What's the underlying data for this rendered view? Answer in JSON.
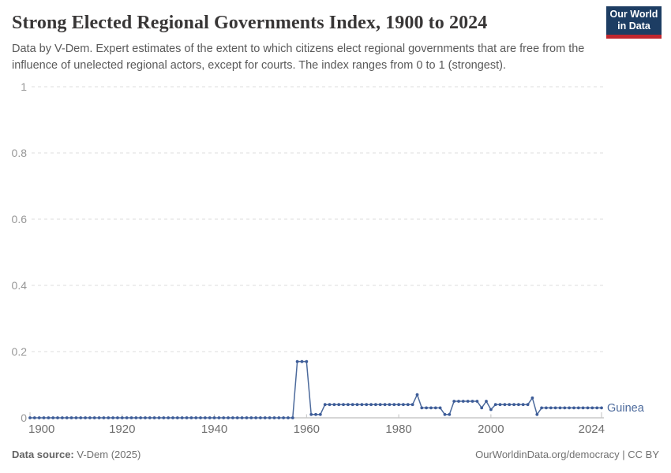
{
  "header": {
    "title": "Strong Elected Regional Governments Index, 1900 to 2024",
    "subtitle": "Data by V-Dem. Expert estimates of the extent to which citizens elect regional governments that are free from the influence of unelected regional actors, except for courts. The index ranges from 0 to 1 (strongest).",
    "logo": {
      "line1": "Our World",
      "line2": "in Data",
      "bg_color": "#1d3d63",
      "accent_color": "#c0262e"
    }
  },
  "chart_data": {
    "type": "line",
    "title": "Strong Elected Regional Governments Index, 1900 to 2024",
    "x_axis": {
      "lim": [
        1900,
        2024
      ],
      "ticks": [
        1900,
        1920,
        1940,
        1960,
        1980,
        2000,
        2024
      ]
    },
    "y_axis": {
      "lim": [
        0,
        1
      ],
      "ticks": [
        0,
        0.2,
        0.4,
        0.6,
        0.8,
        1
      ],
      "grid": "dashed"
    },
    "legend_position": "end-of-line",
    "series": [
      {
        "name": "Guinea",
        "line_color": "#4c6a9c",
        "marker_color": "#3d5c98",
        "segments": [
          {
            "from": 1900,
            "to": 1957,
            "value": 0
          },
          {
            "from": 1958,
            "to": 1960,
            "value": 0.17
          },
          {
            "from": 1961,
            "to": 1963,
            "value": 0.01
          },
          {
            "from": 1964,
            "to": 1983,
            "value": 0.04
          },
          {
            "from": 1984,
            "to": 1984,
            "value": 0.07
          },
          {
            "from": 1985,
            "to": 1989,
            "value": 0.03
          },
          {
            "from": 1990,
            "to": 1991,
            "value": 0.01
          },
          {
            "from": 1992,
            "to": 1997,
            "value": 0.05
          },
          {
            "from": 1998,
            "to": 1998,
            "value": 0.03
          },
          {
            "from": 1999,
            "to": 1999,
            "value": 0.05
          },
          {
            "from": 2000,
            "to": 2000,
            "value": 0.025
          },
          {
            "from": 2001,
            "to": 2008,
            "value": 0.04
          },
          {
            "from": 2009,
            "to": 2009,
            "value": 0.06
          },
          {
            "from": 2010,
            "to": 2010,
            "value": 0.01
          },
          {
            "from": 2011,
            "to": 2024,
            "value": 0.03
          }
        ]
      }
    ],
    "colors": {
      "gridline": "#dcdcdc",
      "axis_line": "#adadad",
      "y_tick_label": "#979797",
      "x_tick_label": "#6e6e6e"
    }
  },
  "footer": {
    "datasource_label": "Data source:",
    "datasource_value": " V-Dem (2025)",
    "right_text": "OurWorldinData.org/democracy | CC BY"
  }
}
